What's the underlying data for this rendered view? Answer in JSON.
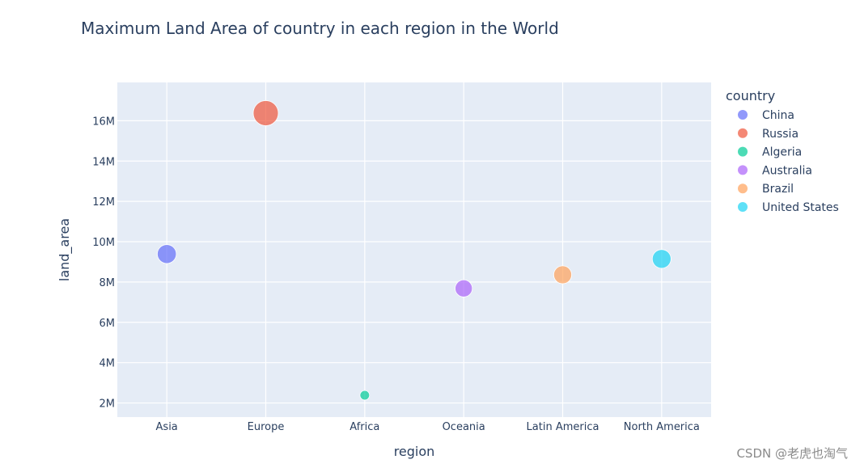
{
  "chart_data": {
    "type": "scatter",
    "title": "Maximum Land Area of country in each region in the World",
    "xlabel": "region",
    "ylabel": "land_area",
    "categories": [
      "Asia",
      "Europe",
      "Africa",
      "Oceania",
      "Latin America",
      "North America"
    ],
    "ylim": [
      1300000,
      17900000
    ],
    "yticks": [
      2000000,
      4000000,
      6000000,
      8000000,
      10000000,
      12000000,
      14000000,
      16000000
    ],
    "ytick_labels": [
      "2M",
      "4M",
      "6M",
      "8M",
      "10M",
      "12M",
      "14M",
      "16M"
    ],
    "grid": true,
    "legend_title": "country",
    "legend_position": "right",
    "series": [
      {
        "name": "China",
        "x": "Asia",
        "y": 9388211,
        "color": "#636efa"
      },
      {
        "name": "Russia",
        "x": "Europe",
        "y": 16376870,
        "color": "#ef553b"
      },
      {
        "name": "Algeria",
        "x": "Africa",
        "y": 2381740,
        "color": "#00cc96"
      },
      {
        "name": "Australia",
        "x": "Oceania",
        "y": 7682300,
        "color": "#ab63fa"
      },
      {
        "name": "Brazil",
        "x": "Latin America",
        "y": 8358140,
        "color": "#ffa15a"
      },
      {
        "name": "United States",
        "x": "North America",
        "y": 9147420,
        "color": "#19d3f3"
      }
    ]
  },
  "watermark": "CSDN @老虎也淘气"
}
